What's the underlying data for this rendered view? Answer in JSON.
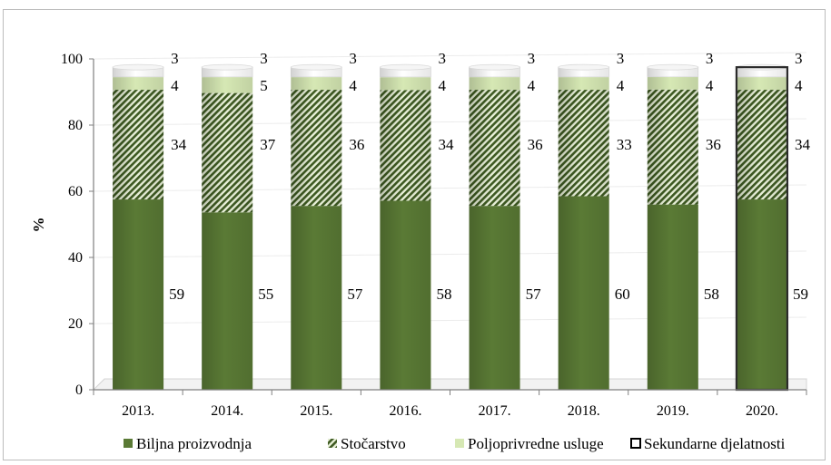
{
  "chart_data": {
    "type": "bar",
    "stacked": true,
    "ylabel": "%",
    "ylim": [
      0,
      100
    ],
    "yticks": [
      0,
      20,
      40,
      60,
      80,
      100
    ],
    "categories": [
      "2013.",
      "2014.",
      "2015.",
      "2016.",
      "2017.",
      "2018.",
      "2019.",
      "2020."
    ],
    "series": [
      {
        "name": "Biljna proizvodnja",
        "values": [
          59,
          55,
          57,
          58,
          57,
          60,
          58,
          59
        ],
        "color": "#5a7a35"
      },
      {
        "name": "Stočarstvo",
        "values": [
          34,
          37,
          36,
          34,
          36,
          33,
          36,
          34
        ],
        "color": "#4e6e2c"
      },
      {
        "name": "Poljoprivredne usluge",
        "values": [
          4,
          5,
          4,
          4,
          4,
          4,
          4,
          4
        ],
        "color": "#d6e8b4"
      },
      {
        "name": "Sekundarne djelatnosti",
        "values": [
          3,
          3,
          3,
          3,
          3,
          3,
          3,
          3
        ],
        "color": "#ffffff"
      }
    ],
    "legend_position": "bottom",
    "grid": true
  }
}
